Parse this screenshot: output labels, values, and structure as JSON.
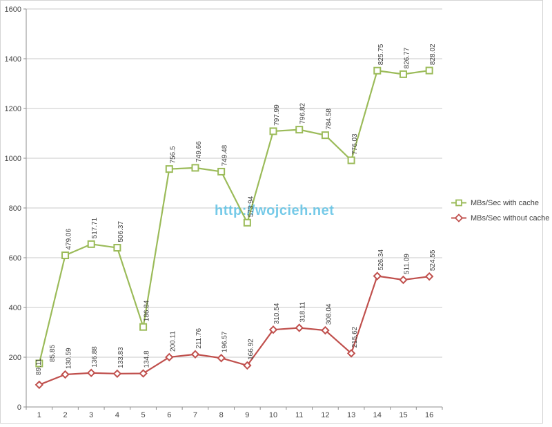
{
  "watermark": {
    "text": "http://wojcieh.net",
    "color": "#54BEE3"
  },
  "chart_data": {
    "type": "line",
    "title": "",
    "xlabel": "",
    "ylabel": "",
    "categories": [
      1,
      2,
      3,
      4,
      5,
      6,
      7,
      8,
      9,
      10,
      11,
      12,
      13,
      14,
      15,
      16
    ],
    "series": [
      {
        "name": "MBs/Sec with cache",
        "color": "#9BBB59",
        "marker": "square",
        "values": [
          85.85,
          479.06,
          517.71,
          506.37,
          186.84,
          756.5,
          749.66,
          749.48,
          573.94,
          797.99,
          796.82,
          784.58,
          776.03,
          825.75,
          826.77,
          828.02
        ],
        "plotting": "stacked on top of 'MBs/Sec without cache' (cumulative y position)"
      },
      {
        "name": "MBs/Sec without cache",
        "color": "#C0504D",
        "marker": "diamond",
        "values": [
          89.11,
          130.59,
          136.88,
          133.83,
          134.8,
          200.11,
          211.76,
          196.57,
          166.92,
          310.54,
          318.11,
          308.04,
          215.62,
          526.34,
          511.09,
          524.55
        ],
        "plotting": "plotted at own values (base of stack)"
      }
    ],
    "ylim": [
      0,
      1600
    ],
    "ytick_step": 200,
    "grid": true,
    "data_labels": "shown, rotated 90°, above each point",
    "legend_position": "right",
    "colors": {
      "grid": "#C9C9C9",
      "axis": "#8E8E8E",
      "tick_text": "#444444",
      "data_label_text": "#3F3F3F",
      "chart_border": "#D4D4D4"
    }
  }
}
